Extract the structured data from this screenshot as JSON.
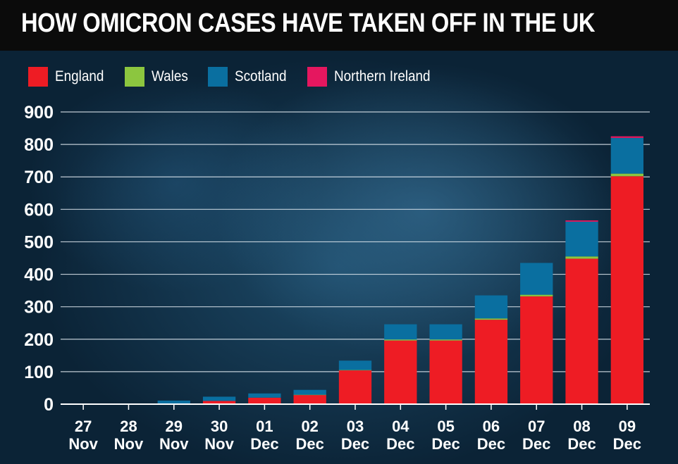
{
  "chart_data": {
    "type": "bar",
    "stacked": true,
    "title": "HOW OMICRON CASES HAVE TAKEN OFF IN THE UK",
    "categories": [
      {
        "day": "27",
        "month": "Nov"
      },
      {
        "day": "28",
        "month": "Nov"
      },
      {
        "day": "29",
        "month": "Nov"
      },
      {
        "day": "30",
        "month": "Nov"
      },
      {
        "day": "01",
        "month": "Dec"
      },
      {
        "day": "02",
        "month": "Dec"
      },
      {
        "day": "03",
        "month": "Dec"
      },
      {
        "day": "04",
        "month": "Dec"
      },
      {
        "day": "05",
        "month": "Dec"
      },
      {
        "day": "06",
        "month": "Dec"
      },
      {
        "day": "07",
        "month": "Dec"
      },
      {
        "day": "08",
        "month": "Dec"
      },
      {
        "day": "09",
        "month": "Dec"
      }
    ],
    "series": [
      {
        "name": "England",
        "color": "#ee1c24",
        "values": [
          0,
          0,
          2,
          10,
          20,
          28,
          104,
          196,
          196,
          260,
          332,
          448,
          702
        ]
      },
      {
        "name": "Wales",
        "color": "#8cc63f",
        "values": [
          0,
          0,
          0,
          0,
          0,
          1,
          1,
          3,
          3,
          4,
          5,
          7,
          8
        ]
      },
      {
        "name": "Scotland",
        "color": "#0a6fa0",
        "values": [
          0,
          0,
          9,
          13,
          13,
          15,
          29,
          47,
          47,
          71,
          98,
          107,
          110
        ]
      },
      {
        "name": "Northern Ireland",
        "color": "#e5175f",
        "values": [
          0,
          0,
          0,
          0,
          0,
          0,
          0,
          0,
          0,
          0,
          0,
          4,
          5
        ]
      }
    ],
    "ylim": [
      0,
      900
    ],
    "yticks": [
      0,
      100,
      200,
      300,
      400,
      500,
      600,
      700,
      800,
      900
    ],
    "xlabel": "",
    "ylabel": "",
    "grid": true,
    "legend_position": "top-left"
  }
}
